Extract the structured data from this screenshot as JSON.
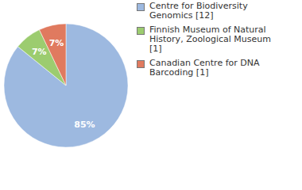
{
  "chart_data": {
    "type": "pie",
    "categories": [
      "Centre for Biodiversity Genomics [12]",
      "Finnish Museum of Natural History, Zoological Museum [1]",
      "Canadian Centre for DNA Barcoding [1]"
    ],
    "values": [
      85,
      7,
      7
    ],
    "value_labels": [
      "85%",
      "7%",
      "7%"
    ],
    "colors": [
      "#9db9e0",
      "#9ccc6f",
      "#e07a5f"
    ],
    "data_labels": true,
    "legend": "upper right"
  }
}
